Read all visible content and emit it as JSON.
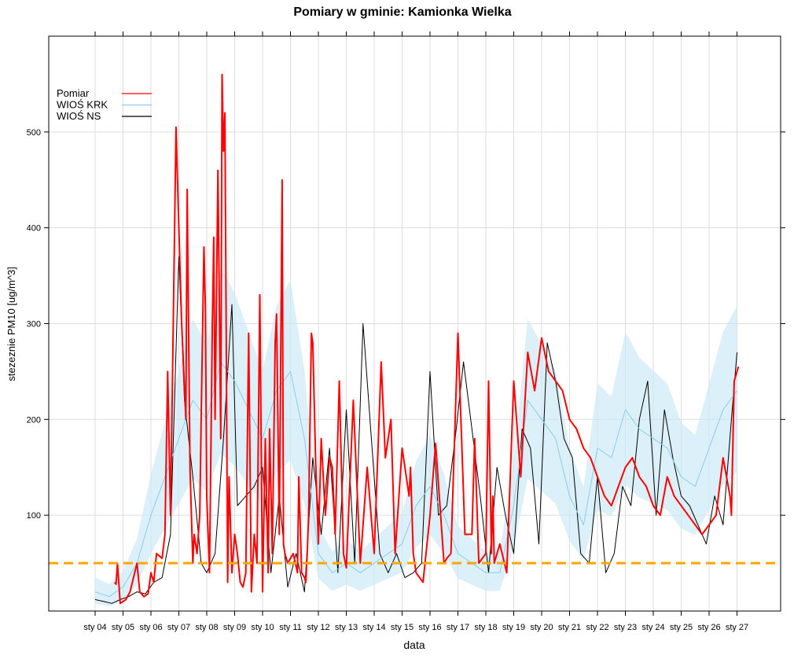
{
  "chart_data": {
    "type": "line",
    "title": "Pomiary w gminie: Kamionka Wielka",
    "xlabel": "data",
    "ylabel": "stezeznie PM10 [ug/m^3]",
    "ylim": [
      0,
      600
    ],
    "yticks": [
      100,
      200,
      300,
      400,
      500
    ],
    "categories": [
      "sty 04",
      "sty 05",
      "sty 06",
      "sty 07",
      "sty 08",
      "sty 09",
      "sty 10",
      "sty 11",
      "sty 12",
      "sty 13",
      "sty 14",
      "sty 15",
      "sty 16",
      "sty 17",
      "sty 18",
      "sty 19",
      "sty 20",
      "sty 21",
      "sty 22",
      "sty 23",
      "sty 24",
      "sty 25",
      "sty 26",
      "sty 27"
    ],
    "grid": true,
    "legend_position": "top-left",
    "threshold": {
      "value": 50,
      "color": "#ffa500"
    },
    "series": [
      {
        "name": "Pomiar",
        "color": "#ff0000",
        "x": [
          0.7,
          0.75,
          0.8,
          0.9,
          1.0,
          1.1,
          1.25,
          1.5,
          1.6,
          1.75,
          1.9,
          2.0,
          2.1,
          2.2,
          2.4,
          2.5,
          2.6,
          2.7,
          2.8,
          2.9,
          3.0,
          3.1,
          3.25,
          3.3,
          3.4,
          3.5,
          3.55,
          3.65,
          3.75,
          3.8,
          3.9,
          3.95,
          4.0,
          4.1,
          4.2,
          4.25,
          4.3,
          4.4,
          4.5,
          4.55,
          4.6,
          4.65,
          4.75,
          4.8,
          4.9,
          5.0,
          5.1,
          5.2,
          5.3,
          5.4,
          5.5,
          5.6,
          5.7,
          5.8,
          5.9,
          6.0,
          6.1,
          6.2,
          6.25,
          6.35,
          6.45,
          6.5,
          6.6,
          6.7,
          6.75,
          6.8,
          6.9,
          7.0,
          7.1,
          7.25,
          7.3,
          7.4,
          7.5,
          7.55,
          7.6,
          7.65,
          7.75,
          7.8,
          7.9,
          8.0,
          8.1,
          8.25,
          8.4,
          8.5,
          8.6,
          8.75,
          8.9,
          9.0,
          9.25,
          9.5,
          9.75,
          10.0,
          10.25,
          10.4,
          10.5,
          10.6,
          10.75,
          11.0,
          11.25,
          11.3,
          11.4,
          11.5,
          11.75,
          12.0,
          12.2,
          12.5,
          12.6,
          12.75,
          13.0,
          13.25,
          13.5,
          13.6,
          13.75,
          14.0,
          14.1,
          14.2,
          14.25,
          14.3,
          14.5,
          14.75,
          15.0,
          15.25,
          15.5,
          15.75,
          16.0,
          16.25,
          16.5,
          16.75,
          17.0,
          17.25,
          17.5,
          17.75,
          18.0,
          18.25,
          18.5,
          18.75,
          19.0,
          19.25,
          19.5,
          19.75,
          20.0,
          20.25,
          20.5,
          20.75,
          21.0,
          21.25,
          21.5,
          21.75,
          22.0,
          22.25,
          22.5,
          22.75,
          22.8,
          22.9,
          23.0,
          23.05
        ],
        "values": [
          30,
          28,
          50,
          8,
          10,
          12,
          20,
          50,
          20,
          15,
          18,
          40,
          30,
          60,
          55,
          80,
          250,
          100,
          300,
          505,
          400,
          300,
          200,
          440,
          150,
          50,
          80,
          60,
          100,
          200,
          380,
          320,
          120,
          40,
          300,
          390,
          200,
          460,
          180,
          560,
          480,
          520,
          30,
          140,
          40,
          80,
          60,
          30,
          25,
          40,
          290,
          20,
          80,
          50,
          330,
          20,
          180,
          40,
          190,
          60,
          280,
          310,
          80,
          450,
          70,
          60,
          50,
          55,
          60,
          40,
          140,
          40,
          35,
          30,
          60,
          100,
          290,
          280,
          160,
          70,
          180,
          100,
          160,
          150,
          80,
          240,
          60,
          45,
          220,
          50,
          150,
          60,
          260,
          160,
          180,
          200,
          60,
          170,
          120,
          150,
          60,
          40,
          30,
          100,
          175,
          50,
          55,
          60,
          290,
          80,
          80,
          180,
          50,
          60,
          240,
          60,
          120,
          50,
          70,
          40,
          240,
          140,
          270,
          230,
          285,
          250,
          240,
          230,
          200,
          190,
          170,
          160,
          140,
          120,
          110,
          130,
          150,
          160,
          140,
          130,
          110,
          100,
          140,
          120,
          110,
          100,
          90,
          80,
          90,
          100,
          160,
          120,
          100,
          240,
          250,
          255
        ]
      },
      {
        "name": "WIOŚ KRK",
        "color": "#87ceeb",
        "x": [
          0.0,
          0.5,
          1.0,
          1.5,
          2.0,
          2.5,
          3.0,
          3.5,
          4.0,
          4.5,
          5.0,
          5.5,
          6.0,
          6.5,
          7.0,
          7.5,
          8.0,
          8.5,
          9.0,
          9.5,
          10.0,
          10.5,
          11.0,
          11.5,
          12.0,
          12.5,
          13.0,
          13.5,
          14.0,
          14.5,
          15.0,
          15.5,
          16.0,
          16.5,
          17.0,
          17.5,
          18.0,
          18.5,
          19.0,
          19.5,
          20.0,
          20.5,
          21.0,
          21.5,
          22.0,
          22.5,
          23.0
        ],
        "values": [
          20,
          15,
          25,
          50,
          100,
          140,
          180,
          220,
          200,
          260,
          240,
          210,
          180,
          230,
          250,
          180,
          60,
          40,
          50,
          40,
          50,
          60,
          70,
          110,
          130,
          100,
          60,
          50,
          40,
          40,
          110,
          220,
          200,
          180,
          120,
          90,
          170,
          160,
          210,
          190,
          180,
          170,
          140,
          130,
          170,
          210,
          230
        ]
      },
      {
        "name": "WIOŚ NS",
        "color": "#000000",
        "x": [
          0.0,
          0.3,
          0.6,
          0.9,
          1.2,
          1.5,
          1.8,
          2.1,
          2.4,
          2.7,
          3.0,
          3.2,
          3.5,
          3.8,
          4.0,
          4.3,
          4.6,
          4.9,
          5.1,
          5.4,
          5.7,
          6.0,
          6.3,
          6.6,
          6.9,
          7.2,
          7.5,
          7.8,
          8.1,
          8.4,
          8.7,
          9.0,
          9.3,
          9.6,
          9.9,
          10.2,
          10.5,
          10.8,
          11.1,
          11.4,
          11.7,
          12.0,
          12.3,
          12.6,
          12.9,
          13.2,
          13.5,
          13.8,
          14.1,
          14.4,
          14.7,
          15.0,
          15.3,
          15.6,
          15.9,
          16.2,
          16.5,
          16.8,
          17.1,
          17.4,
          17.7,
          18.0,
          18.3,
          18.6,
          18.9,
          19.2,
          19.5,
          19.8,
          20.1,
          20.4,
          20.7,
          21.0,
          21.3,
          21.6,
          21.9,
          22.2,
          22.5,
          22.8,
          23.0
        ],
        "values": [
          12,
          10,
          8,
          12,
          15,
          20,
          18,
          30,
          35,
          80,
          370,
          220,
          140,
          50,
          40,
          60,
          180,
          320,
          110,
          120,
          130,
          150,
          40,
          120,
          25,
          60,
          20,
          160,
          80,
          170,
          40,
          210,
          50,
          300,
          180,
          60,
          40,
          60,
          35,
          40,
          50,
          250,
          100,
          110,
          180,
          260,
          190,
          120,
          40,
          150,
          100,
          60,
          190,
          170,
          70,
          280,
          240,
          180,
          160,
          60,
          50,
          140,
          40,
          60,
          130,
          110,
          200,
          240,
          100,
          210,
          160,
          120,
          110,
          90,
          70,
          120,
          90,
          200,
          270
        ]
      }
    ]
  }
}
